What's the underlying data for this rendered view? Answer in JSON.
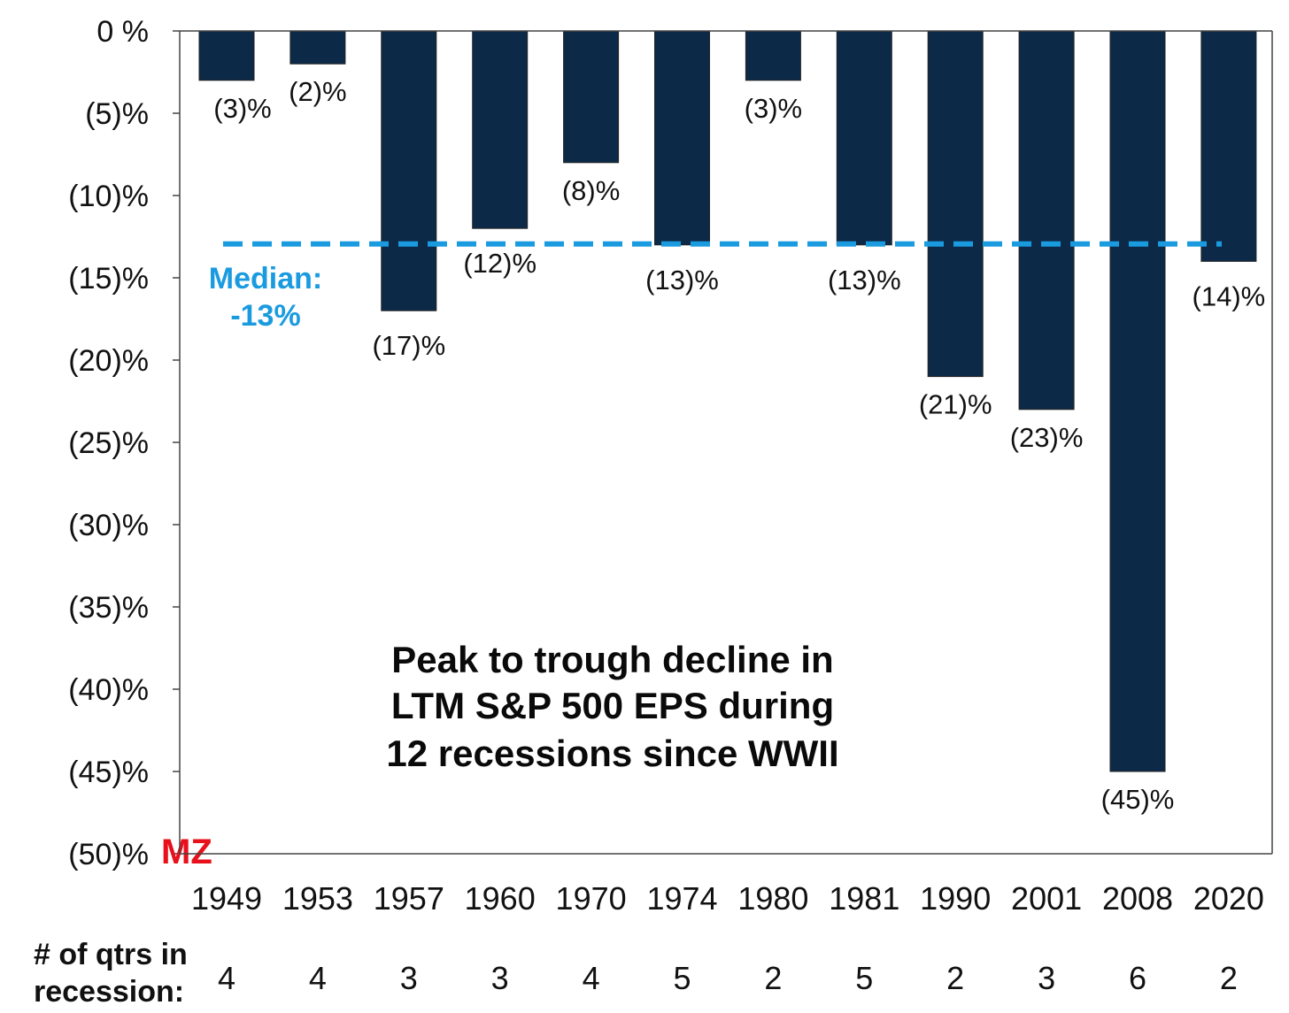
{
  "chart_data": {
    "type": "bar",
    "title": "Peak to trough decline in LTM S&P 500 EPS during 12 recessions since WWII",
    "title_lines": [
      "Peak to trough decline in",
      "LTM S&P 500 EPS during",
      "12 recessions since WWII"
    ],
    "categories": [
      "1949",
      "1953",
      "1957",
      "1960",
      "1970",
      "1974",
      "1980",
      "1981",
      "1990",
      "2001",
      "2008",
      "2020"
    ],
    "values": [
      -3,
      -2,
      -17,
      -12,
      -8,
      -13,
      -3,
      -13,
      -21,
      -23,
      -45,
      -14
    ],
    "data_labels": [
      "(3)%",
      "(2)%",
      "(17)%",
      "(12)%",
      "(8)%",
      "(13)%",
      "(3)%",
      "(13)%",
      "(21)%",
      "(23)%",
      "(45)%",
      "(14)%"
    ],
    "qtrs_label_lines": [
      "# of qtrs  in",
      "recession:"
    ],
    "qtrs_in_recession": [
      "4",
      "4",
      "3",
      "3",
      "4",
      "5",
      "2",
      "5",
      "2",
      "3",
      "6",
      "2"
    ],
    "median": {
      "value": -13,
      "label_lines": [
        "Median:",
        "-13%"
      ]
    },
    "ylim": [
      -50,
      0
    ],
    "yticks": [
      0,
      -5,
      -10,
      -15,
      -20,
      -25,
      -30,
      -35,
      -40,
      -45,
      -50
    ],
    "ytick_labels": [
      "0 %",
      "(5)%",
      "(10)%",
      "(15)%",
      "(20)%",
      "(25)%",
      "(30)%",
      "(35)%",
      "(40)%",
      "(45)%",
      "(50)%"
    ],
    "xlabel": "",
    "ylabel": "",
    "grid": false,
    "watermark": "MZ",
    "colors": {
      "bar": "#0c2a48",
      "median": "#1a9be0",
      "watermark": "#e8101a"
    }
  }
}
